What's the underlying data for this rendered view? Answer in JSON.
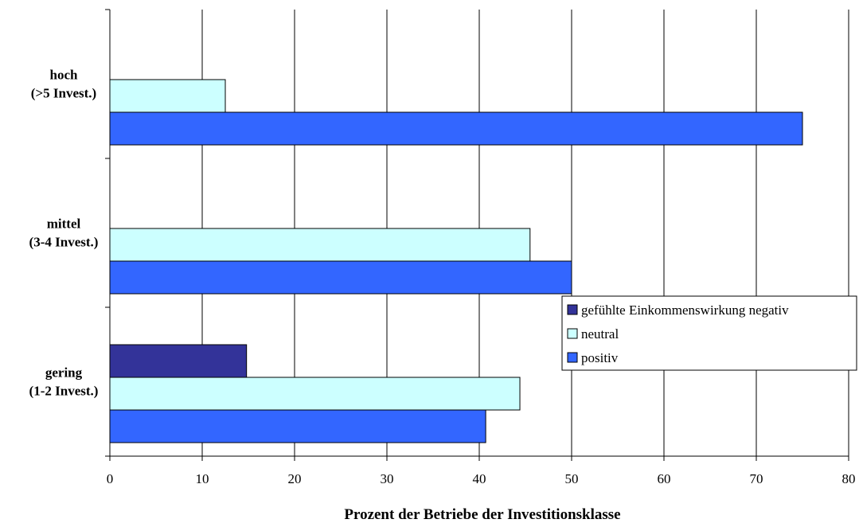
{
  "chart_data": {
    "type": "bar",
    "orientation": "horizontal",
    "xlabel": "Prozent der Betriebe der Investitionsklasse",
    "xlim": [
      0,
      80
    ],
    "xticks": [
      0,
      10,
      20,
      30,
      40,
      50,
      60,
      70,
      80
    ],
    "grid": "vertical",
    "legend_position": "right",
    "categories": [
      {
        "line1": "gering",
        "line2": "(1-2 Invest.)"
      },
      {
        "line1": "mittel",
        "line2": "(3-4 Invest.)"
      },
      {
        "line1": "hoch",
        "line2": "(>5 Invest.)"
      }
    ],
    "series": [
      {
        "name": "gefühlte Einkommenswirkung negativ",
        "color": "#333399",
        "values": [
          14.8,
          null,
          null
        ]
      },
      {
        "name": "neutral",
        "color": "#ccffff",
        "values": [
          44.4,
          45.5,
          12.5
        ]
      },
      {
        "name": "positiv",
        "color": "#3366ff",
        "values": [
          40.7,
          50.0,
          75.0
        ]
      }
    ]
  }
}
